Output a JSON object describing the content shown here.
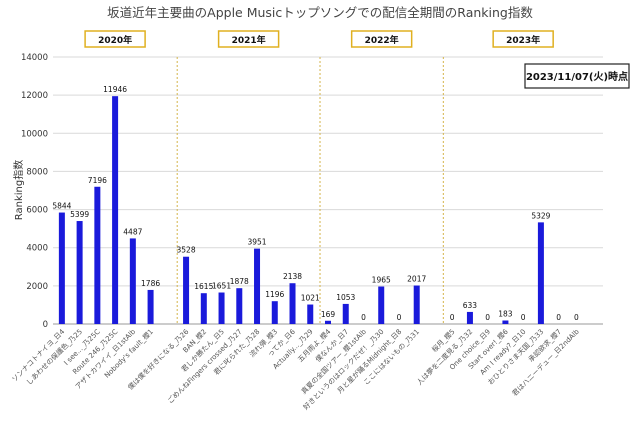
{
  "chart_data": {
    "type": "bar",
    "title": "坂道近年主要曲のApple Musicトップソングでの配信全期間のRanking指数",
    "ylabel": "Ranking指数",
    "xlabel": "",
    "ylim": [
      0,
      14000
    ],
    "yticks": [
      0,
      2000,
      4000,
      6000,
      8000,
      10000,
      12000,
      14000
    ],
    "grid": true,
    "bar_color": "#1a1adb",
    "note": "2023/11/07(火)時点",
    "years": [
      {
        "label": "2020年",
        "start": 0,
        "end": 8
      },
      {
        "label": "2021年",
        "start": 9,
        "end": 17
      },
      {
        "label": "2022年",
        "start": 18,
        "end": 26
      },
      {
        "label": "2023年",
        "start": 27,
        "end": 35
      }
    ],
    "categories": [
      "ソンナコトナイヨ_日4",
      "しあわせの保護色_乃25",
      "I see..._乃25C",
      "Route 246_乃25C",
      "アザトカワイイ_日1stAlb",
      "Nobody's fault_櫻1",
      "僕は僕を好きになる_乃26",
      "BAN_櫻2",
      "君しか勝たん_日5",
      "ごめんねFingers crossed_乃27",
      "君に叱られた_乃28",
      "流れ弾_櫻3",
      "ってか_日6",
      "Actually..._乃29",
      "五月雨よ_櫻4",
      "僕なんか_日7",
      "真夏の全国ツアー_櫻1stAlb",
      "好きというのはロックだぜ！_乃30",
      "月と星が踊るMidnight_日8",
      "ここにはないもの_乃31",
      "桜月_櫻5",
      "人は夢を二度見る_乃32",
      "One choice_日9",
      "Start over!_櫻6",
      "Am I ready?_日10",
      "おひとりさま天国_乃33",
      "承認欲求_櫻7",
      "君はハニーデュー_日2ndAlb"
    ],
    "values": [
      5844,
      5399,
      7196,
      11946,
      4487,
      1786,
      3528,
      1615,
      1651,
      1878,
      3951,
      1196,
      2138,
      1021,
      169,
      1053,
      0,
      1965,
      0,
      2017,
      0,
      633,
      0,
      183,
      0,
      5329,
      0,
      0
    ],
    "positions": [
      1,
      2,
      3,
      4,
      5,
      6,
      8,
      9,
      10,
      11,
      12,
      13,
      14,
      15,
      16,
      17,
      18,
      19,
      20,
      21,
      23,
      24,
      25,
      26,
      27,
      28,
      29,
      30
    ]
  }
}
